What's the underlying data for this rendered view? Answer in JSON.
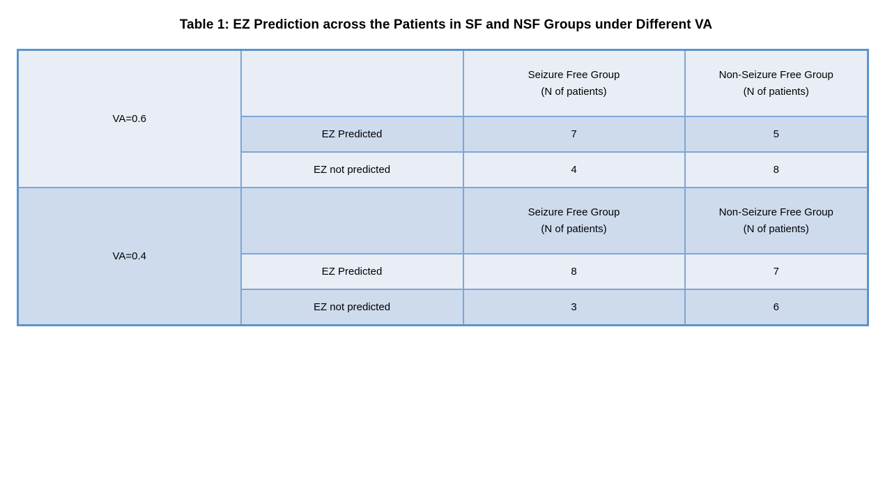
{
  "page_title": "Table 1: EZ Prediction across the Patients in SF and NSF Groups under Different VA",
  "colors": {
    "row_light": "#e9edf6",
    "row_dark": "#cedbed",
    "border_inner": "#7aa7d6",
    "border_outer": "#5d94cb",
    "text": "#000000",
    "background": "#ffffff"
  },
  "chart_data": {
    "type": "table",
    "title": "Table 1: EZ Prediction across the Patients in SF and NSF Groups under Different VA",
    "layout_hint": "two stacked sub-tables sharing columns; VA label cell spans header + 2 data rows; alternating light/dark blue row banding",
    "sections": [
      {
        "group": "VA=0.6",
        "columns": [
          {
            "name": "Seizure Free Group",
            "subtitle": "(N of patients)"
          },
          {
            "name": "Non-Seizure Free Group",
            "subtitle": "(N of patients)"
          }
        ],
        "rows": [
          {
            "label": "EZ Predicted",
            "values": [
              7,
              5
            ]
          },
          {
            "label": "EZ not predicted",
            "values": [
              4,
              8
            ]
          }
        ]
      },
      {
        "group": "VA=0.4",
        "columns": [
          {
            "name": "Seizure Free Group",
            "subtitle": "(N of patients)"
          },
          {
            "name": "Non-Seizure Free Group",
            "subtitle": "(N of patients)"
          }
        ],
        "rows": [
          {
            "label": "EZ Predicted",
            "values": [
              8,
              7
            ]
          },
          {
            "label": "EZ not predicted",
            "values": [
              3,
              6
            ]
          }
        ]
      }
    ]
  }
}
